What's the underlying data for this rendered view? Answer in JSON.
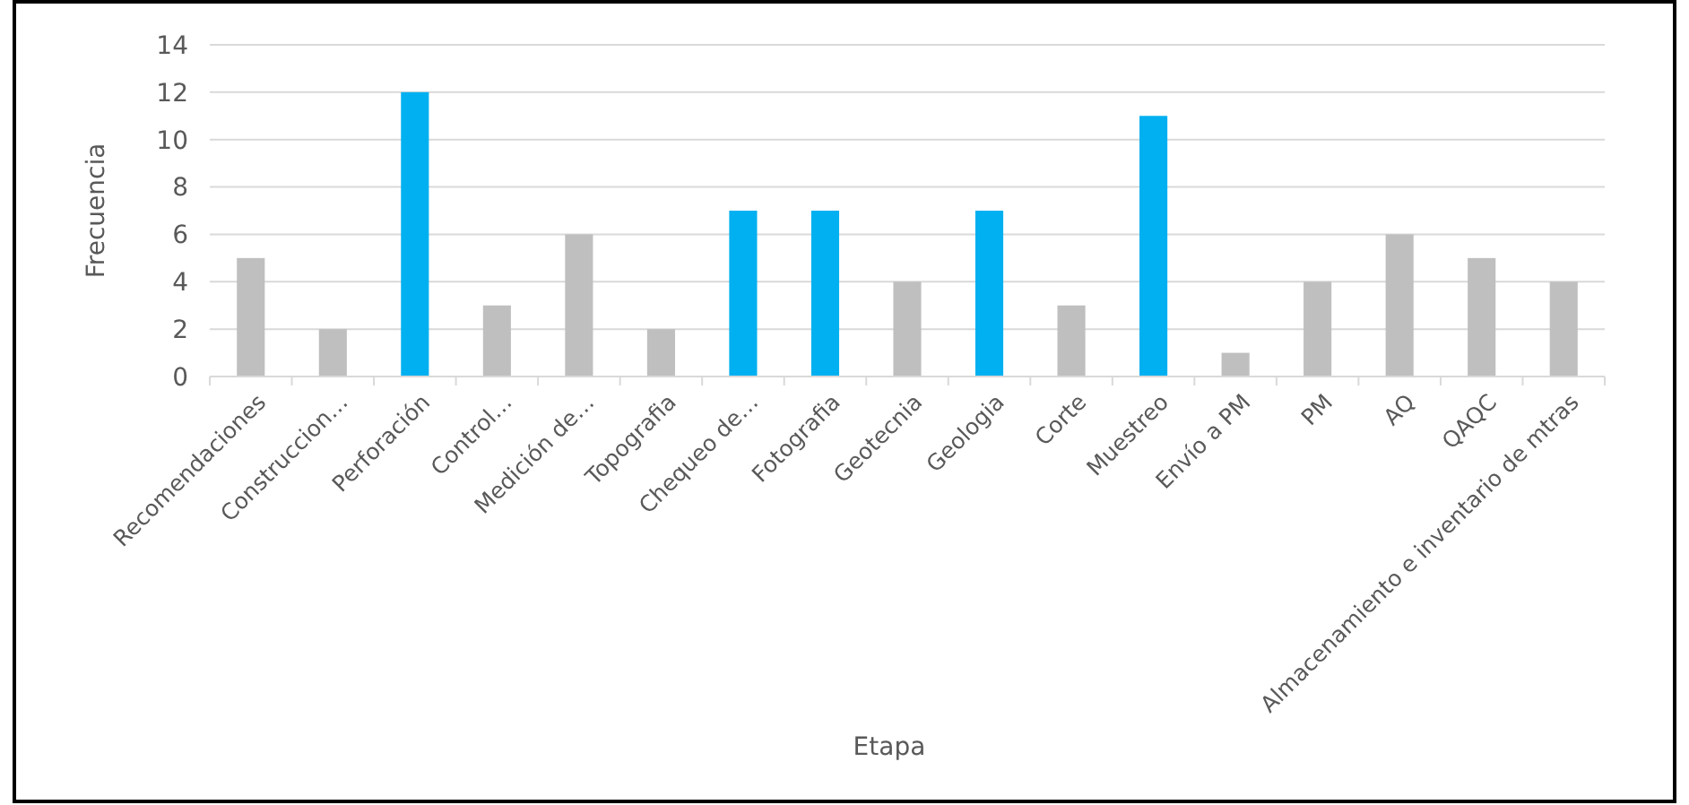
{
  "chart_data": {
    "type": "bar",
    "xlabel": "Etapa",
    "ylabel": "Frecuencia",
    "categories": [
      "Recomendaciones",
      "Construccion…",
      "Perforación",
      "Control…",
      "Medición de…",
      "Topografia",
      "Chequeo de…",
      "Fotografia",
      "Geotecnia",
      "Geologia",
      "Corte",
      "Muestreo",
      "Envío a PM",
      "PM",
      "AQ",
      "QAQC",
      "Almacenamiento e inventario de mtras"
    ],
    "values": [
      5,
      2,
      12,
      3,
      6,
      2,
      7,
      7,
      4,
      7,
      3,
      11,
      1,
      4,
      6,
      5,
      4
    ],
    "colors": [
      "#bfbfbf",
      "#bfbfbf",
      "#00b0f0",
      "#bfbfbf",
      "#bfbfbf",
      "#bfbfbf",
      "#00b0f0",
      "#00b0f0",
      "#bfbfbf",
      "#00b0f0",
      "#bfbfbf",
      "#00b0f0",
      "#bfbfbf",
      "#bfbfbf",
      "#bfbfbf",
      "#bfbfbf",
      "#bfbfbf"
    ],
    "ylim": [
      0,
      14
    ],
    "yticks": [
      0,
      2,
      4,
      6,
      8,
      10,
      12,
      14
    ],
    "grid": "y"
  }
}
